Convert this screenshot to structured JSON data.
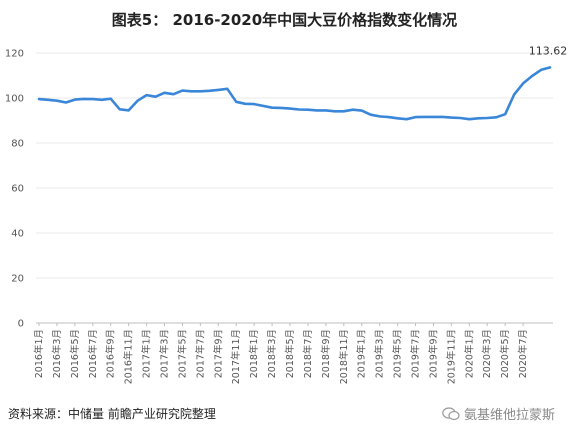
{
  "title": "图表5：  2016-2020年中国大豆价格指数变化情况",
  "source": "资料来源：中储量  前瞻产业研究院整理",
  "watermark_text": "氨基维他拉蒙斯",
  "colors": {
    "line": "#3a86d8"
  },
  "chart_data": {
    "type": "line",
    "title": "图表5：  2016-2020年中国大豆价格指数变化情况",
    "xlabel": "",
    "ylabel": "",
    "ylim": [
      0,
      120
    ],
    "yticks": [
      0,
      20,
      40,
      60,
      80,
      100,
      120
    ],
    "grid": true,
    "x_tick_labels": [
      "2016年1月",
      "2016年3月",
      "2016年5月",
      "2016年7月",
      "2016年9月",
      "2016年11月",
      "2017年1月",
      "2017年3月",
      "2017年5月",
      "2017年7月",
      "2017年9月",
      "2017年11月",
      "2018年1月",
      "2018年3月",
      "2018年5月",
      "2018年7月",
      "2018年9月",
      "2018年11月",
      "2019年1月",
      "2019年3月",
      "2019年5月",
      "2019年7月",
      "2019年9月",
      "2019年11月",
      "2020年1月",
      "2020年3月",
      "2020年5月",
      "2020年7月"
    ],
    "annotation": "113.62",
    "series": [
      {
        "values": [
          99.5,
          99.2,
          98.8,
          98.0,
          99.3,
          99.6,
          99.5,
          99.2,
          99.7,
          95.0,
          94.5,
          98.8,
          101.3,
          100.6,
          102.3,
          101.7,
          103.3,
          103.0,
          103.0,
          103.2,
          103.6,
          104.1,
          98.3,
          97.4,
          97.3,
          96.5,
          95.7,
          95.6,
          95.3,
          94.9,
          94.8,
          94.5,
          94.5,
          94.1,
          94.1,
          94.8,
          94.4,
          92.6,
          91.8,
          91.5,
          91.0,
          90.6,
          91.5,
          91.6,
          91.6,
          91.6,
          91.3,
          91.1,
          90.6,
          91.0,
          91.1,
          91.4,
          92.8,
          101.5,
          106.5,
          109.8,
          112.5,
          113.62
        ]
      }
    ]
  }
}
